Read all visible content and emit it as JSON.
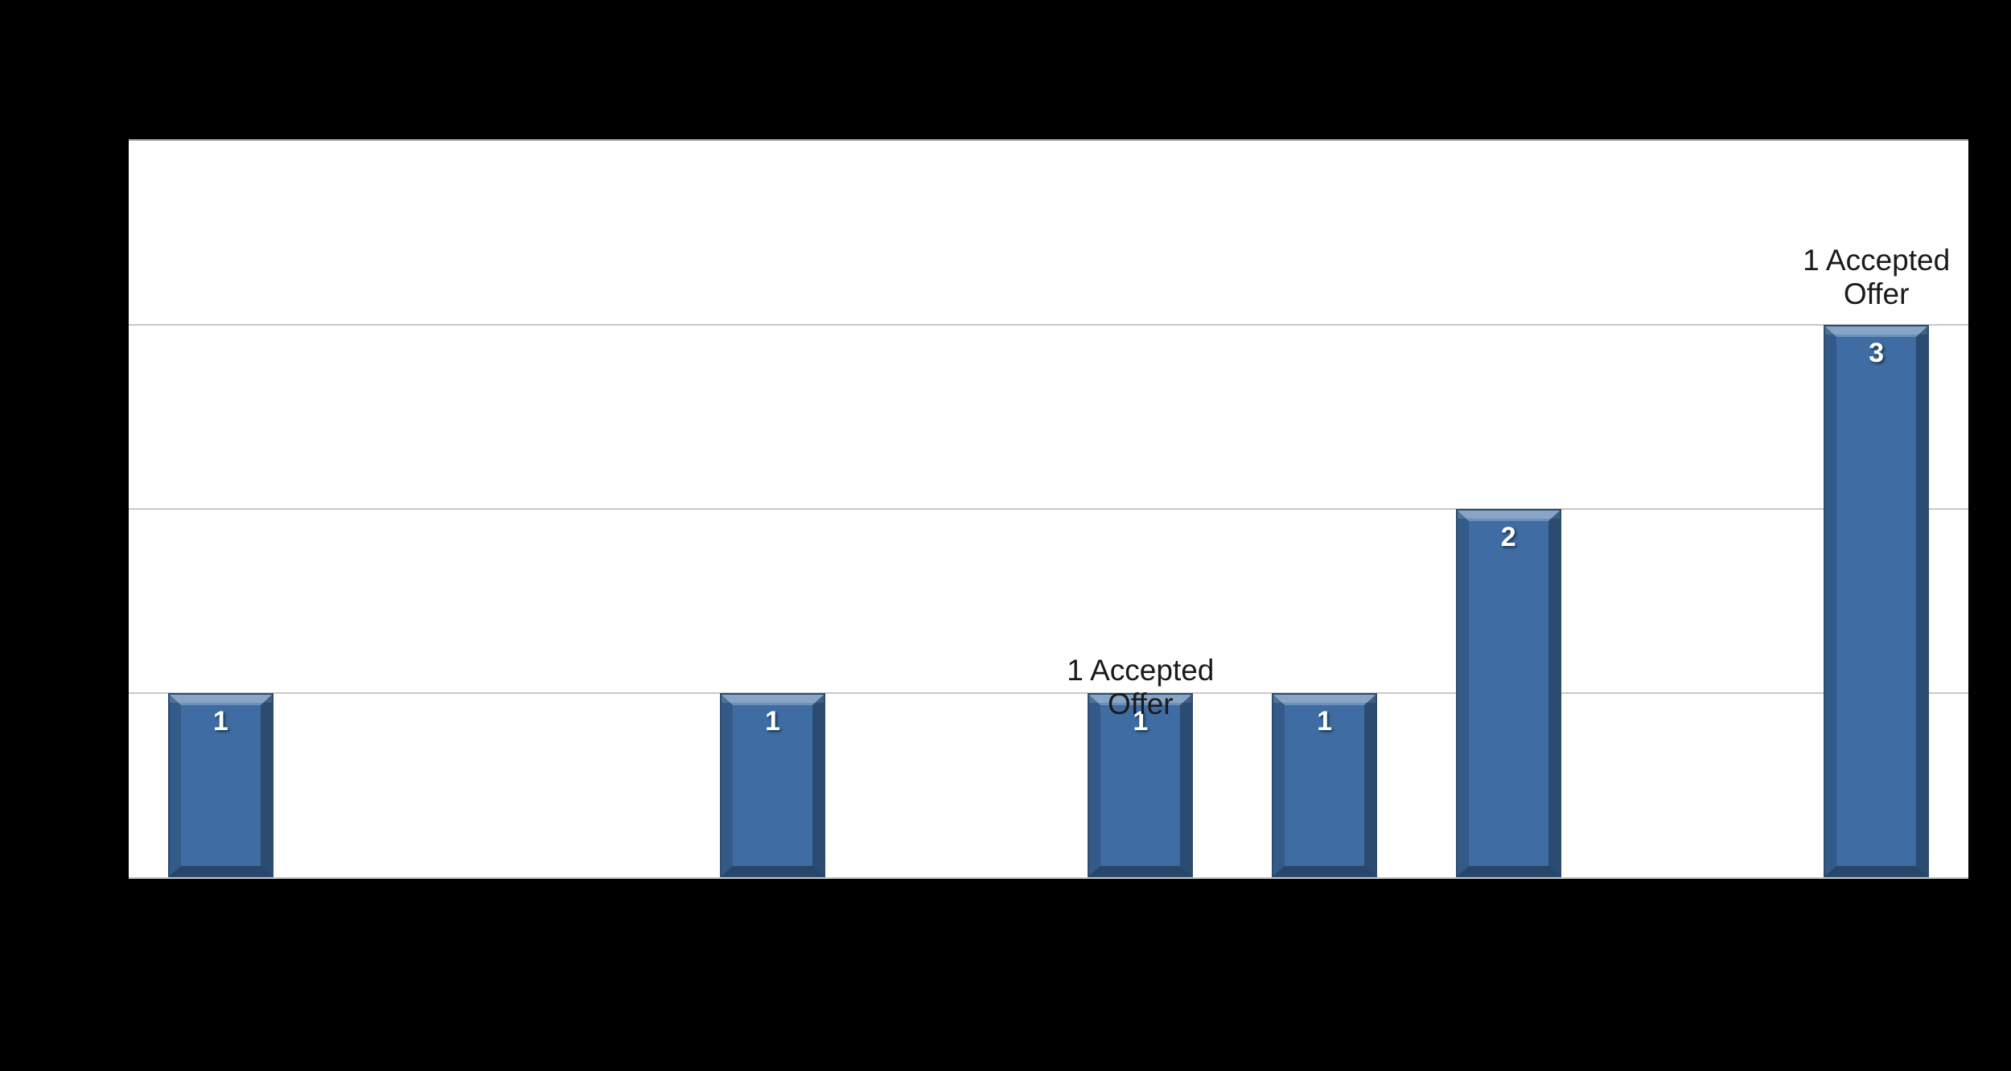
{
  "chart_data": {
    "type": "bar",
    "title": "",
    "categories": [
      "",
      "",
      "",
      "",
      "",
      "",
      "",
      "",
      "",
      ""
    ],
    "values": [
      1,
      0,
      0,
      1,
      0,
      1,
      1,
      2,
      0,
      3
    ],
    "bar_labels": [
      "1",
      "",
      "",
      "1",
      "",
      "1",
      "1",
      "2",
      "",
      "3"
    ],
    "xlabel": "",
    "ylabel": "",
    "ylim": [
      0,
      4
    ],
    "gridline_step": 1,
    "grid": true,
    "legend": "none",
    "annotations": [
      {
        "text": "1 Accepted Offer",
        "lines": [
          "1 Accepted",
          "Offer"
        ],
        "category_index": 5,
        "offset_y": 35
      },
      {
        "text": "1 Accepted Offer",
        "lines": [
          "1 Accepted",
          "Offer"
        ],
        "category_index": 9,
        "offset_y": -17
      }
    ],
    "colors": {
      "chart_background": "#000000",
      "plot_background": "#ffffff",
      "bar_fill": "#3e6ca3",
      "bar_outline": "#2b4c70",
      "gridline": "#c8c8c8",
      "bar_label_text": "#ffffff",
      "annotation_text": "#1a1a1a"
    }
  }
}
